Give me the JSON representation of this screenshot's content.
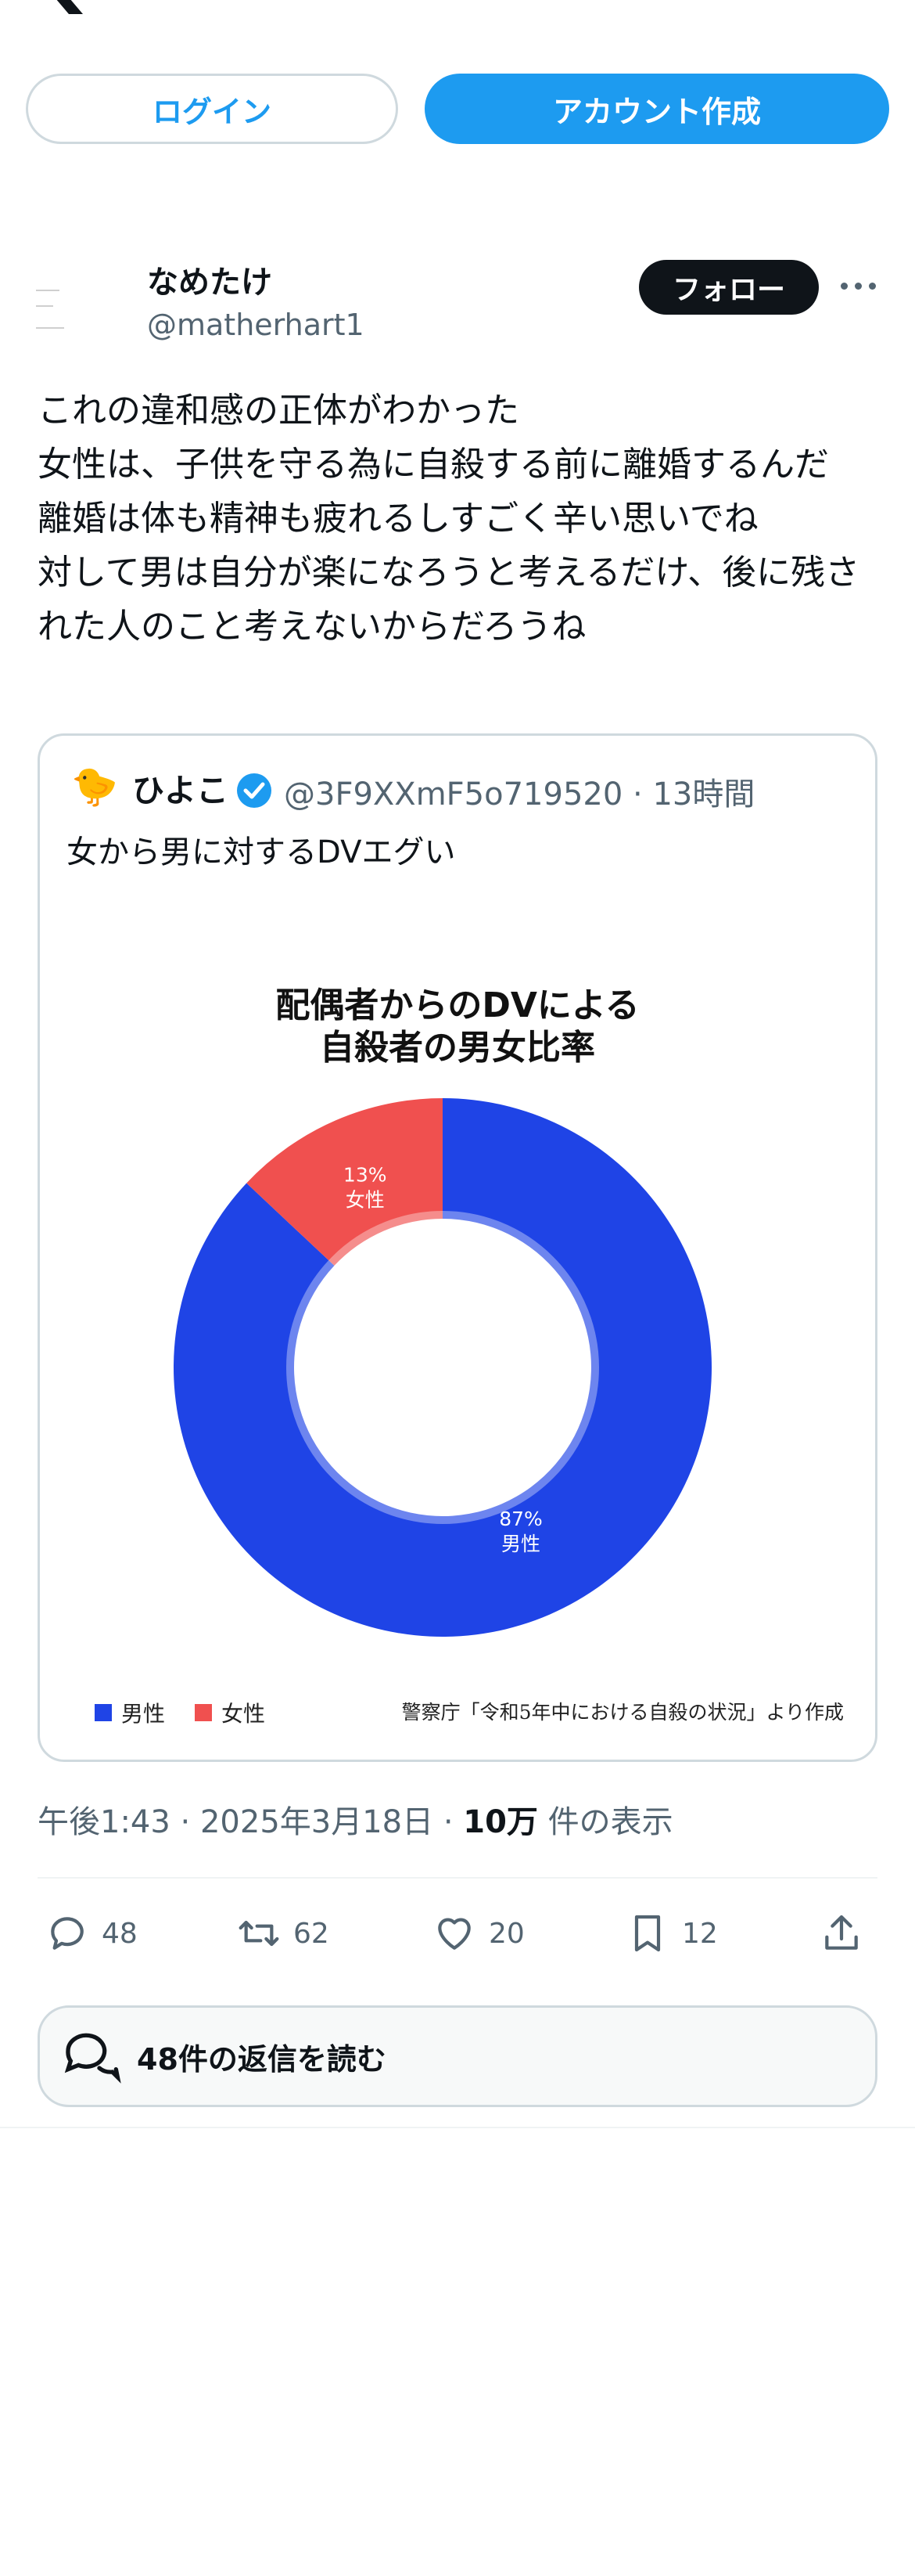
{
  "auth": {
    "login_label": "ログイン",
    "signup_label": "アカウント作成"
  },
  "tweet": {
    "display_name": "なめたけ",
    "handle": "@matherhart1",
    "follow_label": "フォロー",
    "text": "これの違和感の正体がわかった\n女性は、子供を守る為に自殺する前に離婚するんだ\n離婚は体も精神も疲れるしすごく辛い思いでね\n対して男は自分が楽になろうと考えるだけ、後に残された人のこと考えないからだろうね",
    "time": "午後1:43 · 2025年3月18日 · ",
    "views_count": "10万",
    "views_label": " 件の表示"
  },
  "quote": {
    "avatar_emoji": "🐤",
    "name": "ひよこ",
    "handle_time": "@3F9XXmF5o719520 · 13時間",
    "text": "女から男に対するDVエグい"
  },
  "chart_data": {
    "type": "pie",
    "title_line1": "配偶者からのDVによる",
    "title_line2": "自殺者の男女比率",
    "categories": [
      "男性",
      "女性"
    ],
    "values": [
      87,
      13
    ],
    "value_labels": [
      "87%",
      "13%"
    ],
    "colors": [
      "#1f44e6",
      "#f0504f"
    ],
    "legend_position": "bottom-left",
    "source": "警察庁「令和5年中における自殺の状況」より作成"
  },
  "actions": {
    "reply_count": "48",
    "retweet_count": "62",
    "like_count": "20",
    "bookmark_count": "12"
  },
  "replies_button": "48件の返信を読む",
  "icons": [
    "x-logo-icon",
    "more-icon",
    "verified-icon",
    "reply-icon",
    "retweet-icon",
    "like-icon",
    "bookmark-icon",
    "share-icon",
    "speech-bubbles-icon"
  ]
}
